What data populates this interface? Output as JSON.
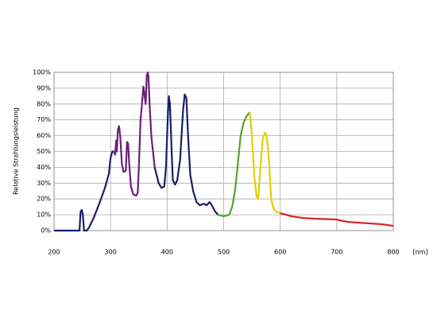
{
  "chart_data": {
    "type": "line",
    "y_label": "Relative Strahlungsleistung",
    "x_unit": "[nm]",
    "xlim": [
      200,
      800
    ],
    "xticks": [
      200,
      300,
      400,
      500,
      600,
      700,
      800
    ],
    "ylim": [
      0,
      100
    ],
    "yticks": [
      {
        "value": 0,
        "label": "0%"
      },
      {
        "value": 10,
        "label": "10%"
      },
      {
        "value": 20,
        "label": "20%"
      },
      {
        "value": 30,
        "label": "30%"
      },
      {
        "value": 40,
        "label": "40%"
      },
      {
        "value": 50,
        "label": "50%"
      },
      {
        "value": 60,
        "label": "60%"
      },
      {
        "value": 70,
        "label": "70%"
      },
      {
        "value": 80,
        "label": "80%"
      },
      {
        "value": 90,
        "label": "90%"
      },
      {
        "value": 100,
        "label": "100%"
      }
    ],
    "grid": true,
    "series": [
      {
        "color": "#1c1c6e",
        "x": [
          200,
          245,
          247,
          249,
          251,
          253,
          258,
          262,
          270,
          280,
          290,
          297,
          300,
          303,
          306
        ],
        "values": [
          0,
          0,
          12,
          13,
          10,
          0,
          0,
          2,
          8,
          17,
          27,
          36,
          46,
          50,
          50
        ]
      },
      {
        "color": "#6b1f78",
        "x": [
          306,
          308,
          310,
          311,
          313,
          315,
          317,
          320,
          323,
          327,
          329,
          331,
          333,
          336,
          340,
          345,
          348,
          350,
          353,
          356,
          358,
          360,
          362,
          364,
          366,
          367,
          369,
          372,
          378
        ],
        "values": [
          50,
          48,
          57,
          50,
          64,
          66,
          60,
          42,
          37,
          38,
          56,
          55,
          42,
          28,
          23,
          22,
          24,
          40,
          70,
          82,
          91,
          86,
          80,
          98,
          100,
          97,
          80,
          60,
          40
        ]
      },
      {
        "color": "#1c1c6e",
        "x": [
          378,
          385,
          390,
          395,
          398,
          401,
          403,
          405,
          408,
          410,
          414,
          418,
          423,
          428,
          431,
          434,
          437,
          441,
          446,
          452,
          458,
          465,
          470,
          475,
          479,
          485,
          490
        ],
        "values": [
          40,
          30,
          27,
          28,
          40,
          70,
          85,
          80,
          50,
          32,
          29,
          32,
          45,
          75,
          86,
          84,
          60,
          35,
          25,
          18,
          16,
          17,
          16,
          18,
          16,
          12,
          10
        ]
      },
      {
        "color": "#5aa02a",
        "x": [
          490,
          500,
          510,
          515,
          520,
          525,
          530,
          535,
          540,
          546
        ],
        "values": [
          10,
          9,
          10,
          15,
          25,
          42,
          60,
          68,
          72,
          75
        ]
      },
      {
        "color": "#e3d000",
        "x": [
          546,
          550,
          554,
          558,
          561,
          565,
          569,
          573,
          576,
          580,
          584,
          588,
          593,
          600
        ],
        "values": [
          75,
          60,
          35,
          22,
          20,
          40,
          58,
          62,
          60,
          45,
          20,
          14,
          12,
          11
        ]
      },
      {
        "color": "#d42020",
        "x": [
          600,
          610,
          620,
          640,
          660,
          680,
          700,
          705,
          720,
          740,
          760,
          780,
          800
        ],
        "values": [
          11,
          10,
          9,
          8,
          7.5,
          7.3,
          7,
          6.5,
          5.5,
          5,
          4.5,
          4,
          3
        ]
      }
    ]
  }
}
